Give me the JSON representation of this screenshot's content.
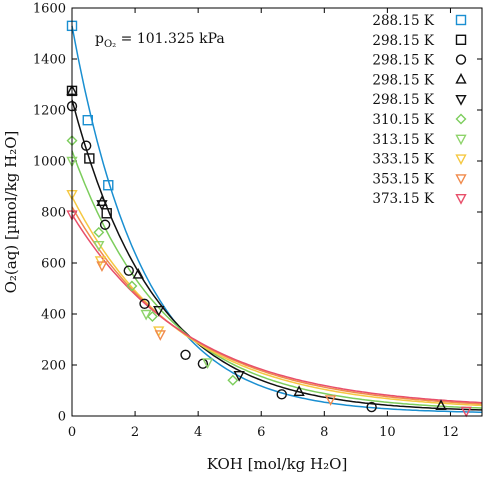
{
  "chart_data": {
    "type": "scatter",
    "xlabel": "KOH [mol/kg H₂O]",
    "ylabel": "O₂(aq) [µmol/kg H₂O]",
    "annotation": {
      "main": "p",
      "sub": "O₂",
      "rest": " = 101.325 kPa"
    },
    "xlim": [
      0,
      13
    ],
    "ylim": [
      0,
      1600
    ],
    "xticks": [
      0,
      2,
      4,
      6,
      8,
      10,
      12
    ],
    "yticks": [
      0,
      200,
      400,
      600,
      800,
      1000,
      1200,
      1400,
      1600
    ],
    "legend_position": "top-right",
    "series": [
      {
        "name": "288.15 K",
        "marker": "square",
        "color": "#1a8fd1",
        "points": [
          [
            0,
            1530
          ],
          [
            0.5,
            1160
          ],
          [
            1.15,
            905
          ]
        ]
      },
      {
        "name": "298.15 K",
        "marker": "square",
        "color": "#111111",
        "points": [
          [
            0,
            1275
          ],
          [
            0.55,
            1010
          ],
          [
            1.1,
            795
          ]
        ]
      },
      {
        "name": "298.15 K",
        "marker": "circle",
        "color": "#111111",
        "points": [
          [
            0,
            1215
          ],
          [
            0.45,
            1060
          ],
          [
            1.05,
            750
          ],
          [
            1.8,
            570
          ],
          [
            2.3,
            440
          ],
          [
            3.6,
            240
          ],
          [
            4.15,
            205
          ],
          [
            6.65,
            85
          ],
          [
            9.5,
            35
          ]
        ]
      },
      {
        "name": "298.15 K",
        "marker": "triangle-up",
        "color": "#111111",
        "points": [
          [
            0,
            1275
          ],
          [
            0.95,
            840
          ],
          [
            2.1,
            555
          ],
          [
            7.2,
            95
          ],
          [
            11.7,
            40
          ]
        ]
      },
      {
        "name": "298.15 K",
        "marker": "triangle-down",
        "color": "#111111",
        "points": [
          [
            0.95,
            830
          ],
          [
            2.75,
            415
          ],
          [
            5.3,
            160
          ]
        ]
      },
      {
        "name": "310.15 K",
        "marker": "diamond",
        "color": "#7ccd5c",
        "points": [
          [
            0,
            1080
          ],
          [
            0.85,
            720
          ],
          [
            1.9,
            510
          ],
          [
            2.55,
            390
          ],
          [
            5.1,
            140
          ]
        ]
      },
      {
        "name": "313.15 K",
        "marker": "triangle-down",
        "color": "#8fd46b",
        "points": [
          [
            0,
            1000
          ],
          [
            0.85,
            670
          ],
          [
            2.35,
            400
          ],
          [
            4.3,
            210
          ]
        ]
      },
      {
        "name": "333.15 K",
        "marker": "triangle-down",
        "color": "#f5c842",
        "points": [
          [
            0,
            870
          ],
          [
            0.9,
            610
          ],
          [
            2.75,
            335
          ]
        ]
      },
      {
        "name": "353.15 K",
        "marker": "triangle-down",
        "color": "#f08a4b",
        "points": [
          [
            0.95,
            590
          ],
          [
            2.8,
            320
          ],
          [
            8.2,
            65
          ]
        ]
      },
      {
        "name": "373.15 K",
        "marker": "triangle-down",
        "color": "#e84f6a",
        "points": [
          [
            0,
            790
          ],
          [
            12.5,
            20
          ]
        ]
      }
    ],
    "fit_curves": [
      {
        "color": "#1a8fd1",
        "y0": 1530,
        "k": 0.442,
        "floor": 10
      },
      {
        "color": "#111111",
        "y0": 1240,
        "k": 0.38,
        "floor": 15
      },
      {
        "color": "#7ccd5c",
        "y0": 1040,
        "k": 0.335,
        "floor": 18
      },
      {
        "color": "#f5c842",
        "y0": 860,
        "k": 0.29,
        "floor": 22
      },
      {
        "color": "#f08a4b",
        "y0": 820,
        "k": 0.275,
        "floor": 25
      },
      {
        "color": "#e84f6a",
        "y0": 790,
        "k": 0.265,
        "floor": 28
      }
    ]
  }
}
